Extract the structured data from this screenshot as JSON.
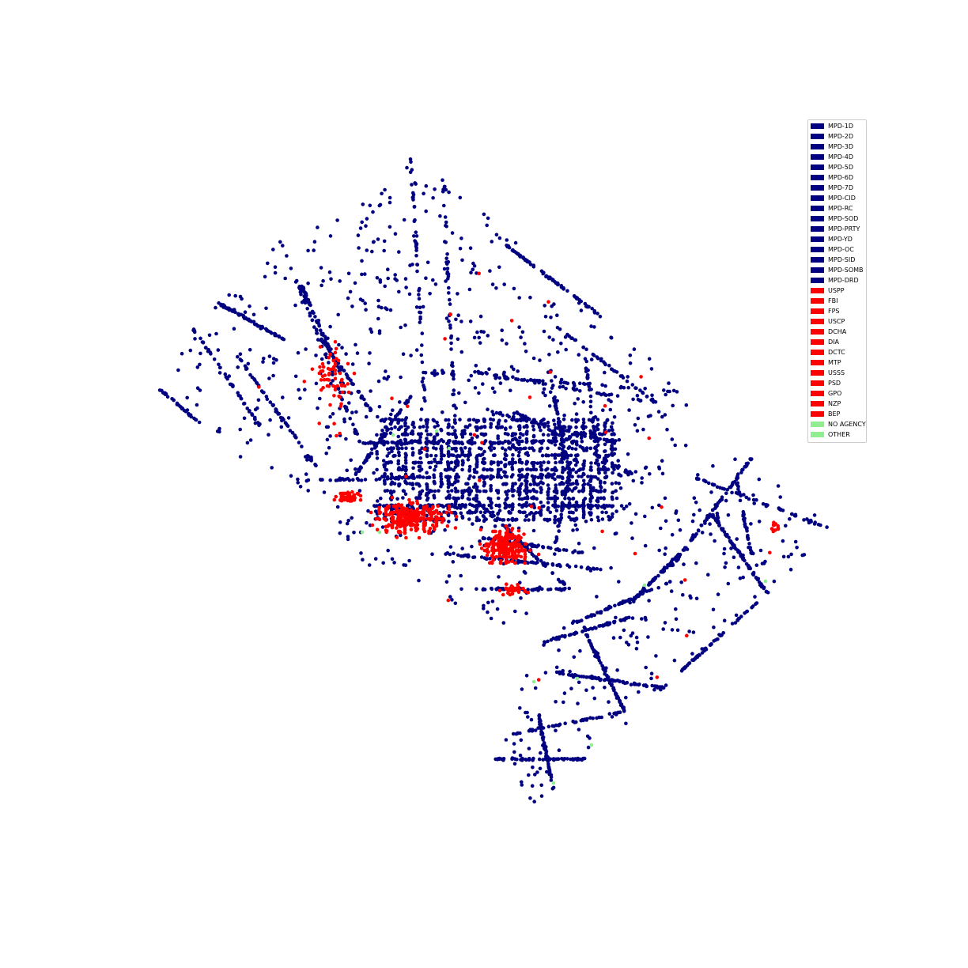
{
  "colors": {
    "mpd": "#000080",
    "federal": "#ff0000",
    "other": "#90ee90"
  },
  "legend": {
    "items": [
      {
        "label": "MPD-1D",
        "color": "#000080"
      },
      {
        "label": "MPD-2D",
        "color": "#000080"
      },
      {
        "label": "MPD-3D",
        "color": "#000080"
      },
      {
        "label": "MPD-4D",
        "color": "#000080"
      },
      {
        "label": "MPD-5D",
        "color": "#000080"
      },
      {
        "label": "MPD-6D",
        "color": "#000080"
      },
      {
        "label": "MPD-7D",
        "color": "#000080"
      },
      {
        "label": "MPD-CID",
        "color": "#000080"
      },
      {
        "label": "MPD-RC",
        "color": "#000080"
      },
      {
        "label": "MPD-SOD",
        "color": "#000080"
      },
      {
        "label": "MPD-PRTY",
        "color": "#000080"
      },
      {
        "label": "MPD-YD",
        "color": "#000080"
      },
      {
        "label": "MPD-OC",
        "color": "#000080"
      },
      {
        "label": "MPD-SID",
        "color": "#000080"
      },
      {
        "label": "MPD-SOMB",
        "color": "#000080"
      },
      {
        "label": "MPD-DRD",
        "color": "#000080"
      },
      {
        "label": "USPP",
        "color": "#ff0000"
      },
      {
        "label": "FBI",
        "color": "#ff0000"
      },
      {
        "label": "FPS",
        "color": "#ff0000"
      },
      {
        "label": "USCP",
        "color": "#ff0000"
      },
      {
        "label": "DCHA",
        "color": "#ff0000"
      },
      {
        "label": "DIA",
        "color": "#ff0000"
      },
      {
        "label": "DCTC",
        "color": "#ff0000"
      },
      {
        "label": "MTP",
        "color": "#ff0000"
      },
      {
        "label": "USSS",
        "color": "#ff0000"
      },
      {
        "label": "PSD",
        "color": "#ff0000"
      },
      {
        "label": "GPO",
        "color": "#ff0000"
      },
      {
        "label": "NZP",
        "color": "#ff0000"
      },
      {
        "label": "BEP",
        "color": "#ff0000"
      },
      {
        "label": "NO AGENCY",
        "color": "#90ee90"
      },
      {
        "label": "OTHER",
        "color": "#90ee90"
      }
    ]
  }
}
